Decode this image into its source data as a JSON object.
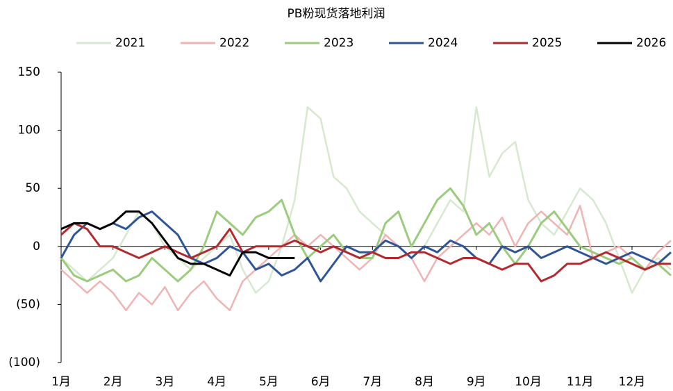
{
  "chart_data": {
    "type": "line",
    "title": "PB粉现货落地利润",
    "categories": [
      "1月",
      null,
      null,
      null,
      "2月",
      null,
      null,
      null,
      "3月",
      null,
      null,
      null,
      "4月",
      null,
      null,
      null,
      "5月",
      null,
      null,
      null,
      "6月",
      null,
      null,
      null,
      "7月",
      null,
      null,
      null,
      "8月",
      null,
      null,
      null,
      "9月",
      null,
      null,
      null,
      "10月",
      null,
      null,
      null,
      "11月",
      null,
      null,
      null,
      "12月",
      null,
      null,
      null
    ],
    "ylim": [
      -100,
      150
    ],
    "yticks": [
      {
        "value": -100,
        "label": "(100)"
      },
      {
        "value": -50,
        "label": "(50)"
      },
      0,
      50,
      100,
      150
    ],
    "negative_tick_color": "#ff0000",
    "legend": "top",
    "series": [
      {
        "name": "2021",
        "color": "#d6e9cf",
        "values": [
          -10,
          -20,
          -30,
          -20,
          -10,
          10,
          30,
          20,
          0,
          -10,
          -20,
          -10,
          0,
          10,
          -20,
          -40,
          -30,
          0,
          40,
          120,
          110,
          60,
          50,
          30,
          20,
          10,
          0,
          -10,
          0,
          20,
          40,
          30,
          120,
          60,
          80,
          90,
          40,
          20,
          10,
          30,
          50,
          40,
          20,
          -10,
          -40,
          -20,
          -10,
          -20
        ]
      },
      {
        "name": "2022",
        "color": "#f0b3b3",
        "values": [
          -20,
          -30,
          -40,
          -30,
          -40,
          -55,
          -40,
          -50,
          -35,
          -55,
          -40,
          -30,
          -45,
          -55,
          -30,
          -20,
          -10,
          0,
          10,
          0,
          10,
          0,
          -10,
          -20,
          -10,
          10,
          0,
          -10,
          -30,
          -10,
          0,
          10,
          20,
          10,
          25,
          0,
          20,
          30,
          20,
          10,
          35,
          -10,
          -5,
          0,
          -10,
          -20,
          -5,
          5
        ]
      },
      {
        "name": "2023",
        "color": "#9bcb7c",
        "values": [
          -10,
          -25,
          -30,
          -25,
          -20,
          -30,
          -25,
          -10,
          -20,
          -30,
          -20,
          0,
          30,
          20,
          10,
          25,
          30,
          40,
          10,
          -10,
          0,
          10,
          -5,
          -10,
          -10,
          20,
          30,
          0,
          20,
          40,
          50,
          35,
          10,
          20,
          0,
          -15,
          0,
          20,
          30,
          15,
          0,
          -5,
          -10,
          -15,
          -10,
          -20,
          -15,
          -25
        ]
      },
      {
        "name": "2024",
        "color": "#2f5597",
        "values": [
          -10,
          10,
          20,
          15,
          20,
          15,
          25,
          30,
          20,
          10,
          -10,
          -15,
          -10,
          0,
          -5,
          -20,
          -15,
          -25,
          -20,
          -10,
          -30,
          -15,
          0,
          -5,
          -5,
          5,
          0,
          -10,
          0,
          -5,
          5,
          0,
          -10,
          -15,
          0,
          -5,
          0,
          -10,
          -5,
          0,
          -5,
          -10,
          -15,
          -10,
          -5,
          -10,
          -15,
          -5
        ]
      },
      {
        "name": "2025",
        "color": "#b22a2e",
        "values": [
          10,
          20,
          15,
          0,
          0,
          -5,
          -10,
          -5,
          0,
          -5,
          -10,
          -5,
          0,
          15,
          -5,
          0,
          0,
          0,
          5,
          0,
          -5,
          0,
          -5,
          -10,
          -5,
          -10,
          -10,
          -5,
          -5,
          -10,
          -15,
          -10,
          -10,
          -15,
          -20,
          -15,
          -15,
          -30,
          -25,
          -15,
          -15,
          -10,
          -5,
          -10,
          -15,
          -20,
          -15,
          -15
        ]
      },
      {
        "name": "2026",
        "color": "#000000",
        "values": [
          15,
          20,
          20,
          15,
          20,
          30,
          30,
          20,
          5,
          -10,
          -15,
          -15,
          -20,
          -25,
          -5,
          -5,
          -10,
          -10,
          -10,
          null,
          null,
          null,
          null,
          null,
          null,
          null,
          null,
          null,
          null,
          null,
          null,
          null,
          null,
          null,
          null,
          null,
          null,
          null,
          null,
          null,
          null,
          null,
          null,
          null,
          null,
          null,
          null,
          null
        ]
      }
    ]
  }
}
